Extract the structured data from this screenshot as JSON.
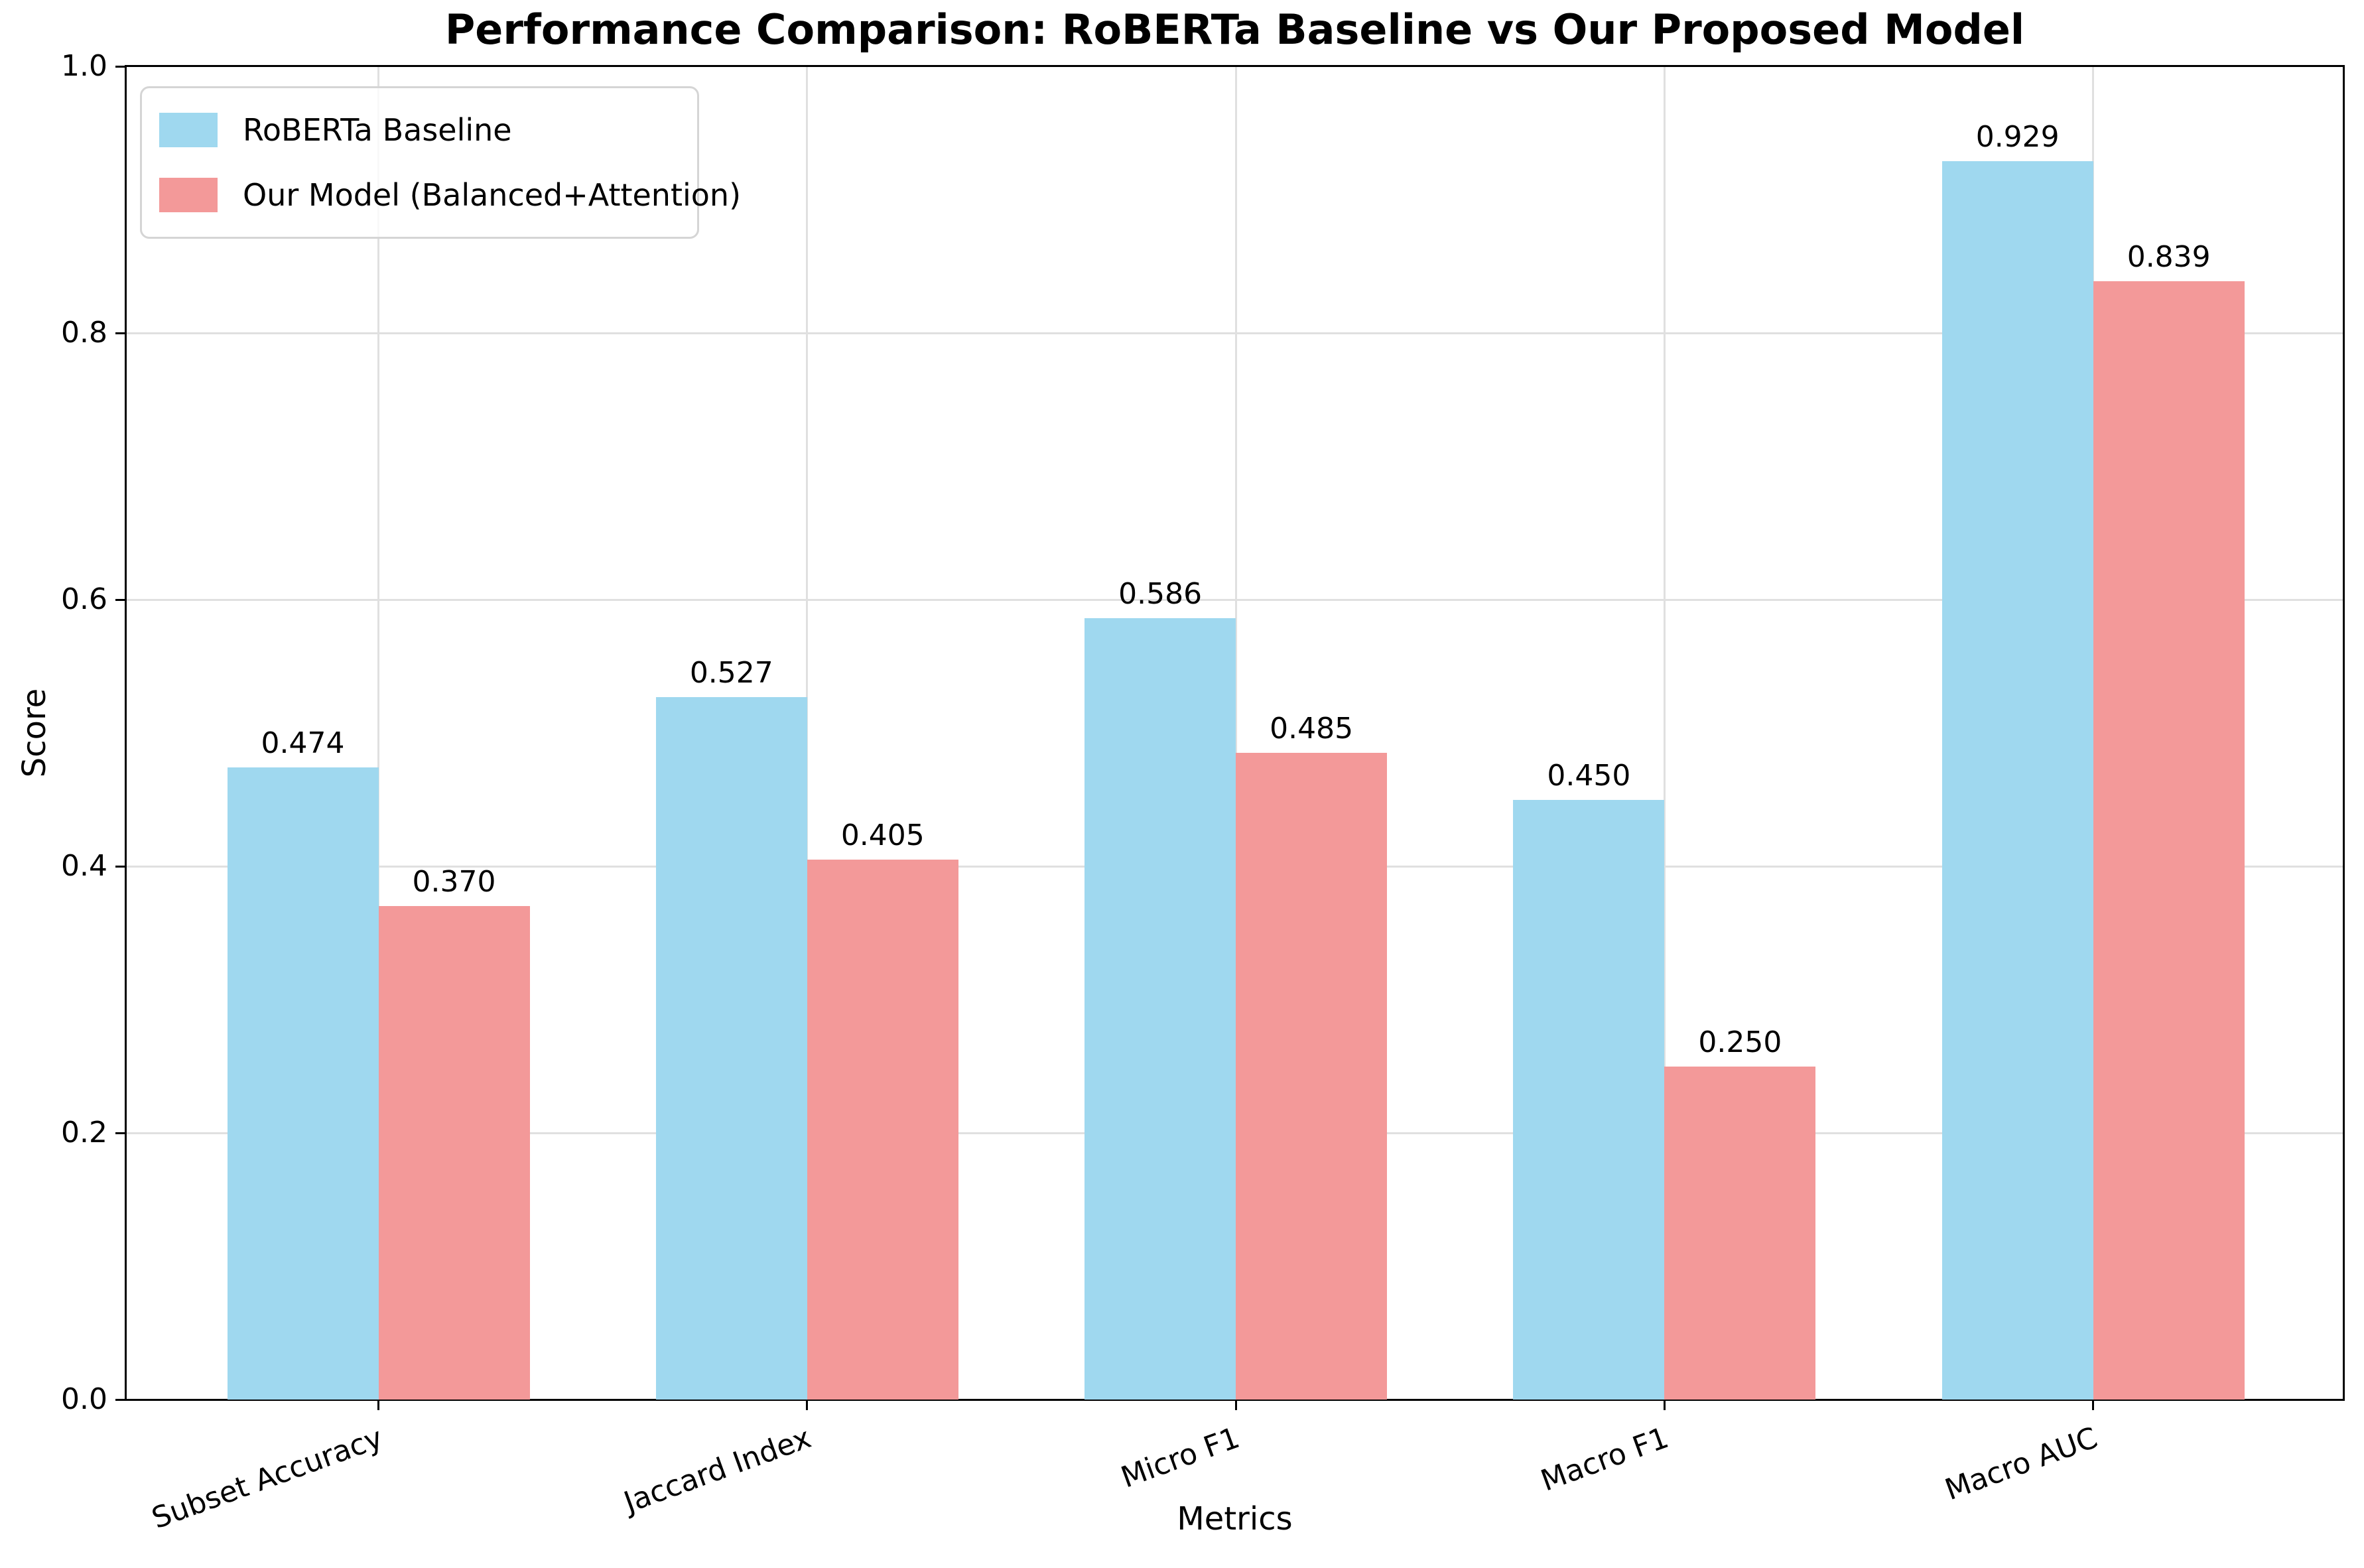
{
  "title": "Performance Comparison: RoBERTa Baseline vs Our Proposed Model",
  "chart_data": {
    "type": "bar",
    "categories": [
      "Subset Accuracy",
      "Jaccard Index",
      "Micro F1",
      "Macro F1",
      "Macro AUC"
    ],
    "series": [
      {
        "name": "RoBERTa Baseline",
        "color": "#9FD8EF",
        "values": [
          0.474,
          0.527,
          0.586,
          0.45,
          0.929
        ]
      },
      {
        "name": "Our Model (Balanced+Attention)",
        "color": "#F39999",
        "values": [
          0.37,
          0.405,
          0.485,
          0.25,
          0.839
        ]
      }
    ],
    "bar_value_labels": [
      [
        "0.474",
        "0.527",
        "0.586",
        "0.450",
        "0.929"
      ],
      [
        "0.370",
        "0.405",
        "0.485",
        "0.250",
        "0.839"
      ]
    ],
    "xlabel": "Metrics",
    "ylabel": "Score",
    "ylim": [
      0.0,
      1.0
    ],
    "ytick_labels": [
      "0.0",
      "0.2",
      "0.4",
      "0.6",
      "0.8",
      "1.0"
    ],
    "grid": true,
    "legend_position": "upper left",
    "axis_color": "#000000",
    "grid_color": "#E0E0E0"
  }
}
